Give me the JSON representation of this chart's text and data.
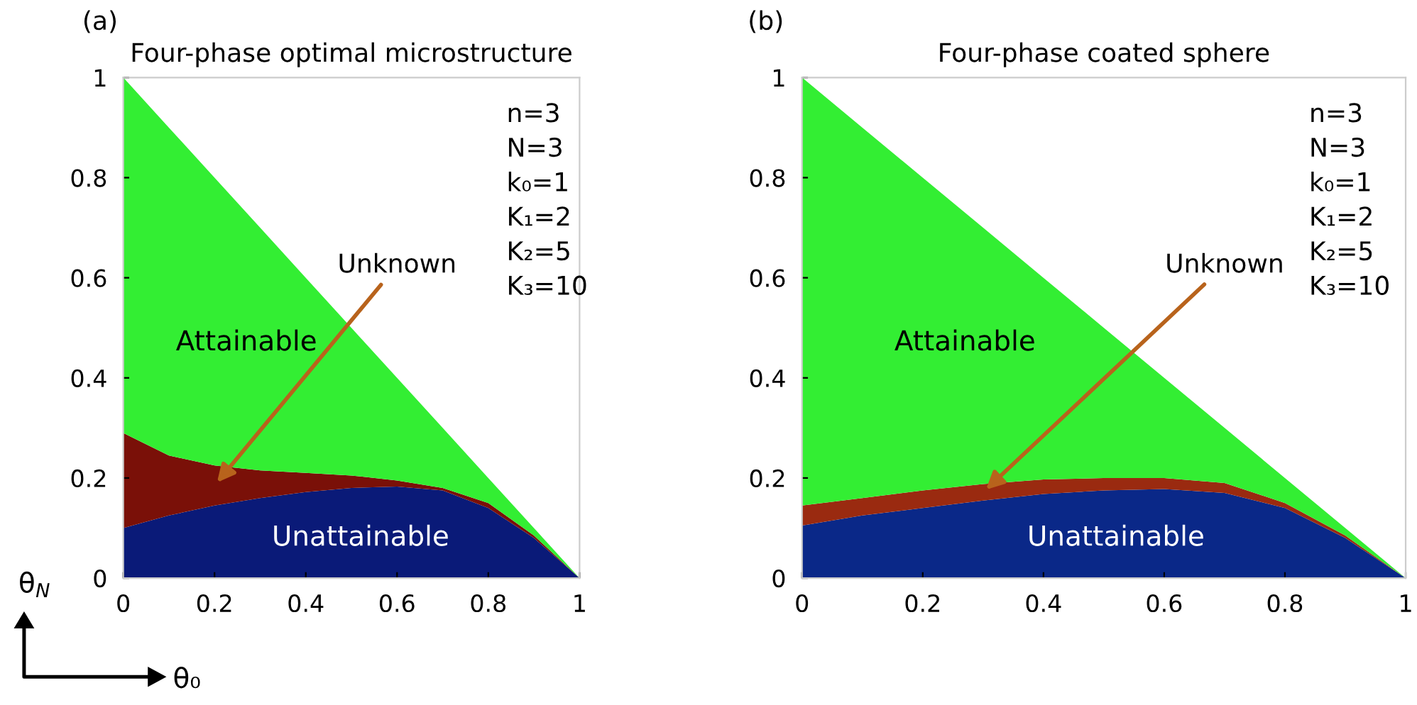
{
  "chart_data": [
    {
      "type": "area",
      "title": "Four-phase optimal microstructure",
      "stacked": true,
      "xlabel": "θ₀",
      "ylabel": "θ$_{N}$",
      "x": [
        0,
        0.1,
        0.2,
        0.3,
        0.4,
        0.5,
        0.6,
        0.7,
        0.8,
        0.9,
        1
      ],
      "series": [
        {
          "name": "Unattainable",
          "color": "#0a1a78",
          "values": [
            0.1,
            0.125,
            0.145,
            0.16,
            0.172,
            0.18,
            0.183,
            0.175,
            0.14,
            0.08,
            0
          ]
        },
        {
          "name": "Unknown",
          "color": "#7a1008",
          "values": [
            0.19,
            0.12,
            0.08,
            0.055,
            0.038,
            0.025,
            0.012,
            0.005,
            0.01,
            0.005,
            0
          ]
        },
        {
          "name": "Attainable",
          "color": "#33ee33",
          "values": [
            0.71,
            0.655,
            0.575,
            0.485,
            0.39,
            0.295,
            0.205,
            0.12,
            0.05,
            0.015,
            0
          ]
        }
      ],
      "xlim": [
        0,
        1
      ],
      "ylim": [
        0,
        1
      ],
      "xticks": [
        0,
        0.2,
        0.4,
        0.6,
        0.8,
        1
      ],
      "yticks": [
        0,
        0.2,
        0.4,
        0.6,
        0.8,
        1
      ],
      "grid": false,
      "legend": false,
      "annotations": [
        "(a)",
        "n=3\nN=3\nk₀=1\nK₁=2\nK₂=5\nK₃=10"
      ]
    },
    {
      "type": "area",
      "title": "Four-phase coated sphere",
      "stacked": true,
      "x": [
        0,
        0.1,
        0.2,
        0.3,
        0.4,
        0.5,
        0.6,
        0.7,
        0.8,
        0.9,
        1
      ],
      "series": [
        {
          "name": "Unattainable",
          "color": "#0a2888",
          "values": [
            0.105,
            0.125,
            0.14,
            0.155,
            0.168,
            0.175,
            0.178,
            0.17,
            0.14,
            0.08,
            0
          ]
        },
        {
          "name": "Unknown",
          "color": "#9a2a10",
          "values": [
            0.04,
            0.035,
            0.035,
            0.033,
            0.029,
            0.025,
            0.022,
            0.02,
            0.01,
            0.005,
            0
          ]
        },
        {
          "name": "Attainable",
          "color": "#33ee33",
          "values": [
            0.855,
            0.74,
            0.625,
            0.512,
            0.403,
            0.3,
            0.2,
            0.11,
            0.05,
            0.015,
            0
          ]
        }
      ],
      "xlim": [
        0,
        1
      ],
      "ylim": [
        0,
        1
      ],
      "xticks": [
        0,
        0.2,
        0.4,
        0.6,
        0.8,
        1
      ],
      "yticks": [
        0,
        0.2,
        0.4,
        0.6,
        0.8,
        1
      ],
      "grid": false,
      "legend": false,
      "annotations": [
        "(b)",
        "n=3\nN=3\nk₀=1\nK₁=2\nK₂=5\nK₃=10"
      ]
    }
  ]
}
